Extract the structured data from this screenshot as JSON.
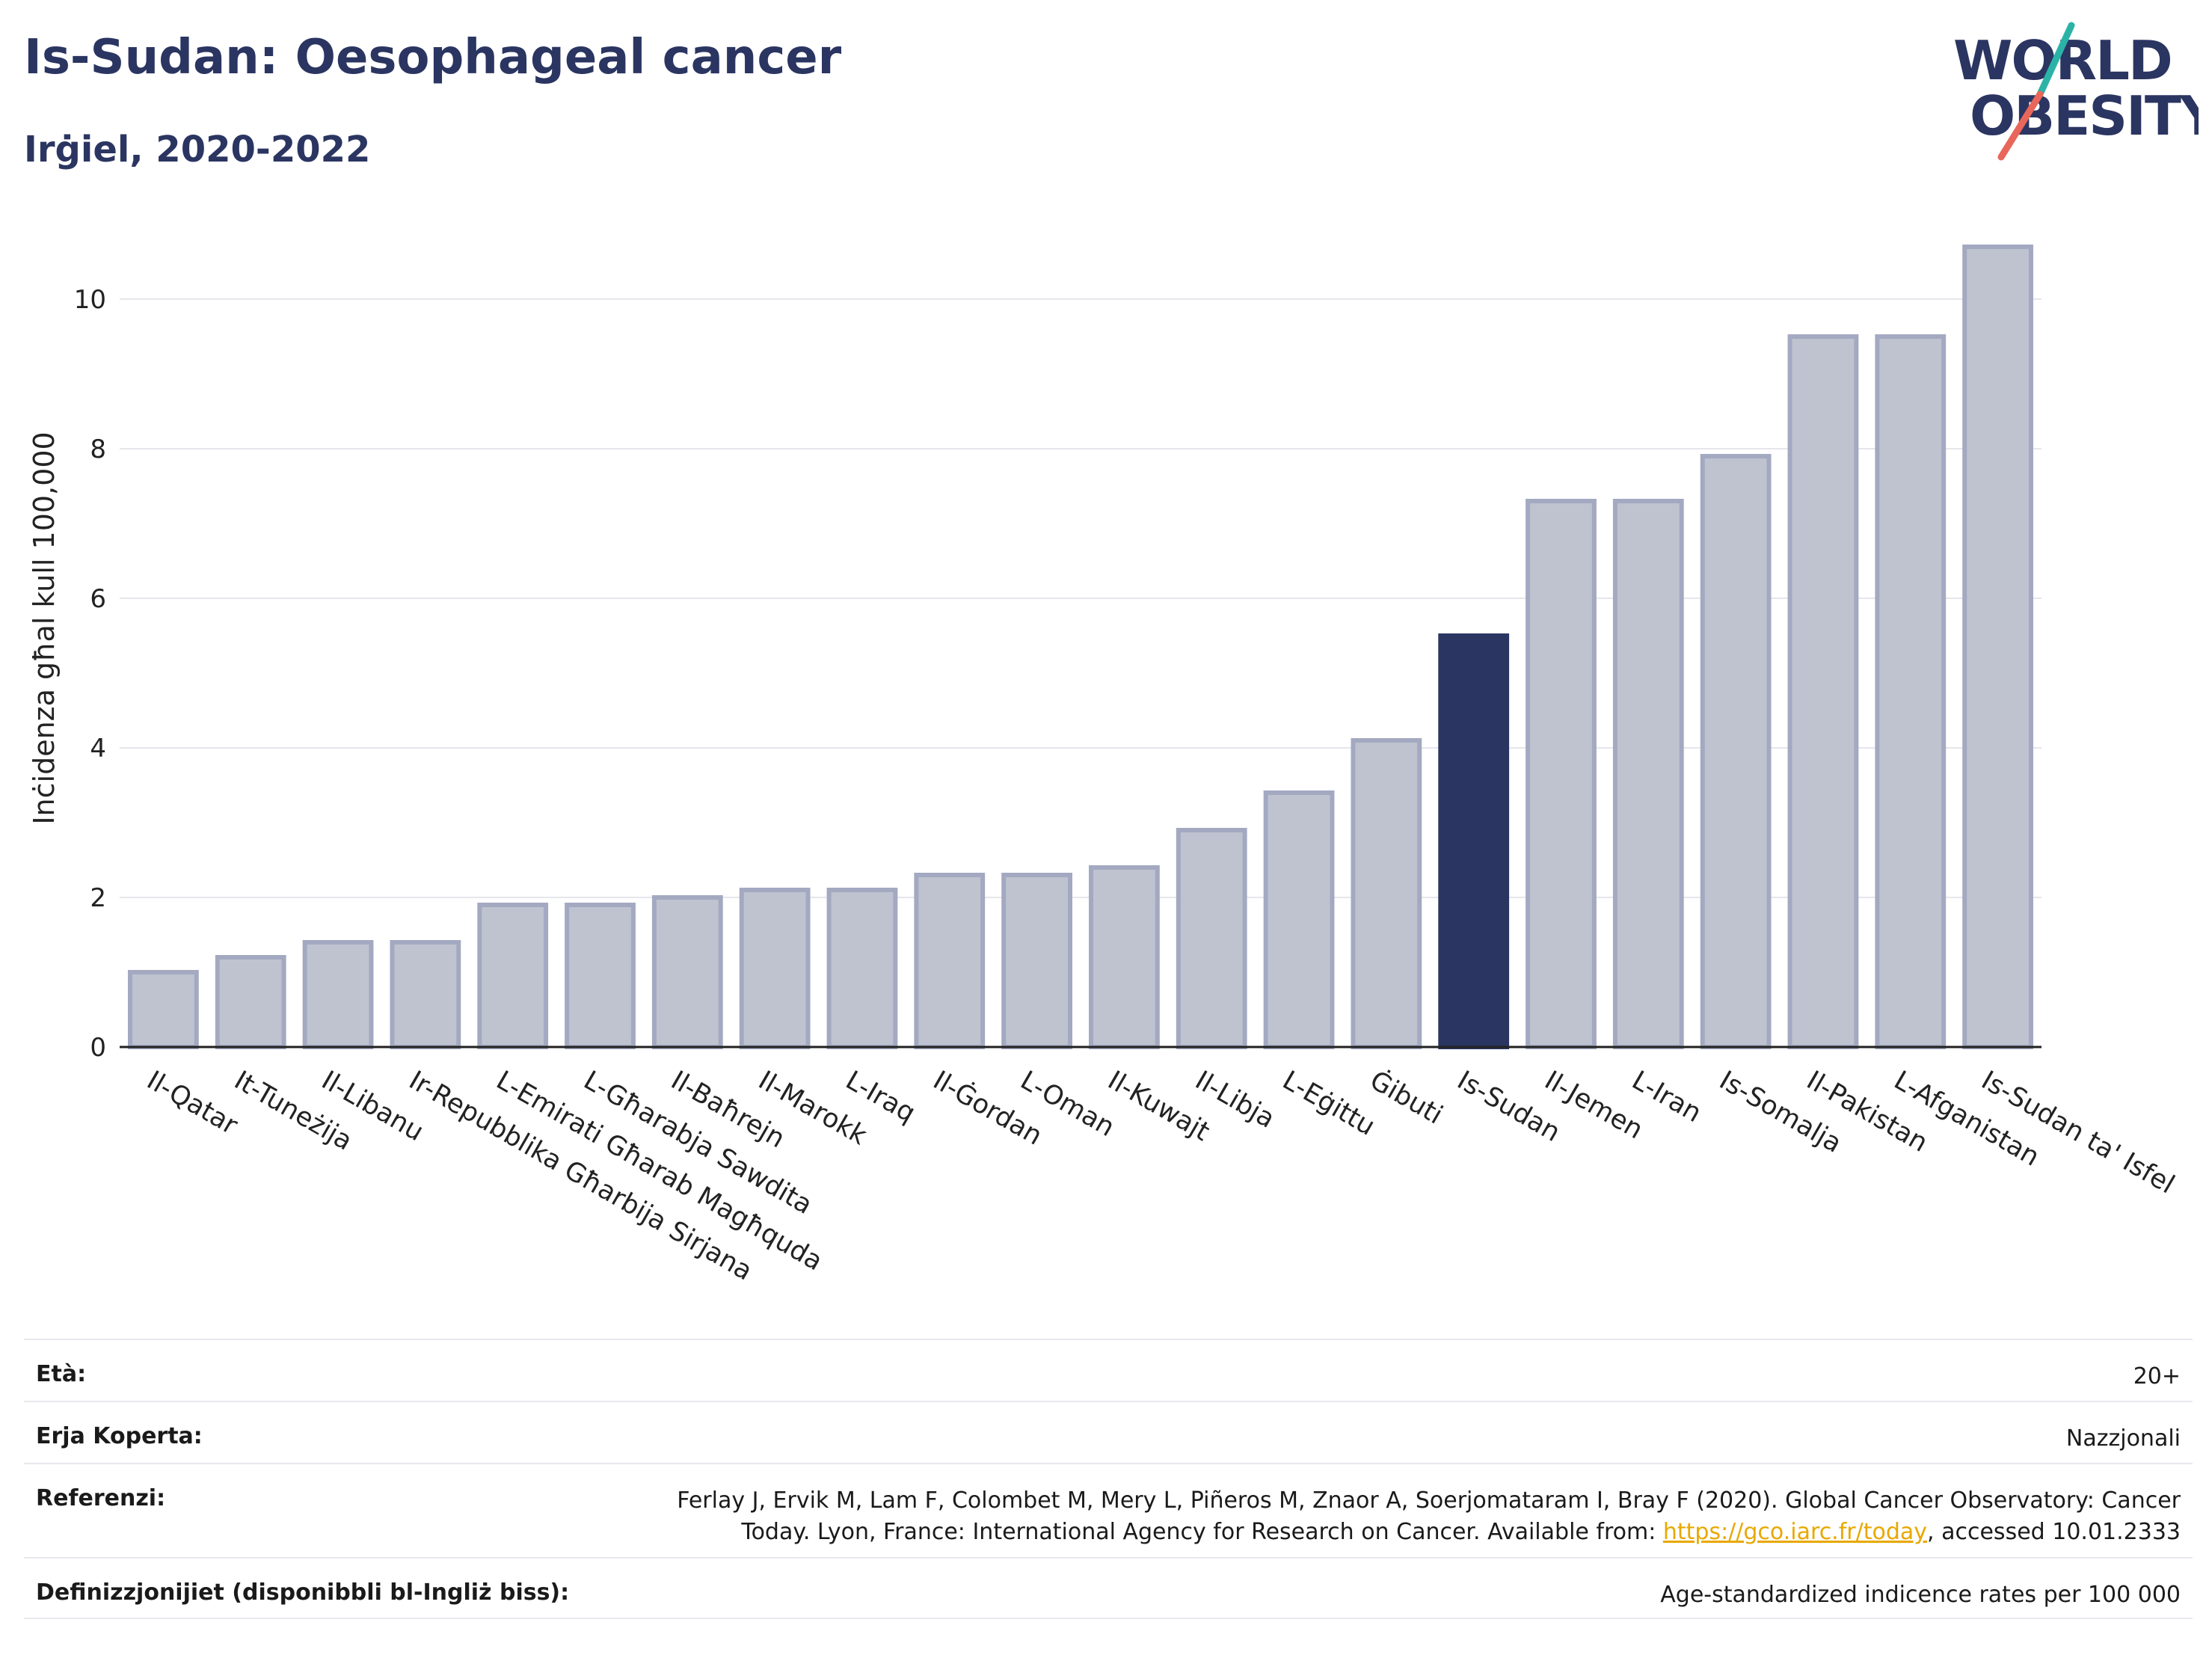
{
  "header": {
    "title": "Is-Sudan: Oesophageal cancer",
    "subtitle": "Irġiel, 2020-2022"
  },
  "logo": {
    "line1": "WORLD",
    "line2": "OBESITY",
    "accent_colors": [
      "#e8675a",
      "#2bb3a8"
    ],
    "text_color": "#2b3561"
  },
  "chart_data": {
    "type": "bar",
    "ylabel": "Inċidenza għal kull 100,000",
    "xlabel": "",
    "ylim": [
      0,
      11
    ],
    "yticks": [
      0,
      2,
      4,
      6,
      8,
      10
    ],
    "grid": true,
    "highlight_category": "Is-Sudan",
    "colors": {
      "bar_fill": "#bfc3d0",
      "bar_stroke": "#a3a9c0",
      "highlight": "#2b3561",
      "grid": "#e6e6ec"
    },
    "categories": [
      "Il-Qatar",
      "It-Tuneżija",
      "Il-Libanu",
      "Ir-Repubblika Għarbija Sirjana",
      "L-Emirati Għarab Magħquda",
      "L-Għarabja Sawdita",
      "Il-Baħrejn",
      "Il-Marokk",
      "L-Iraq",
      "Il-Ġordan",
      "L-Oman",
      "Il-Kuwajt",
      "Il-Libja",
      "L-Eġittu",
      "Ġibuti",
      "Is-Sudan",
      "Il-Jemen",
      "L-Iran",
      "Is-Somalja",
      "Il-Pakistan",
      "L-Afganistan",
      "Is-Sudan ta' Isfel"
    ],
    "values": [
      1.0,
      1.2,
      1.4,
      1.4,
      1.9,
      1.9,
      2.0,
      2.1,
      2.1,
      2.3,
      2.3,
      2.4,
      2.9,
      3.4,
      4.1,
      5.5,
      7.3,
      7.3,
      7.9,
      9.5,
      9.5,
      10.7
    ]
  },
  "info": {
    "rows": [
      {
        "key": "Età:",
        "value": "20+"
      },
      {
        "key": "Erja Koperta:",
        "value": "Nazzjonali"
      },
      {
        "key": "Referenzi:",
        "value_line1": "Ferlay J, Ervik M, Lam F, Colombet M, Mery L, Piñeros M, Znaor A, Soerjomataram I, Bray F (2020). Global Cancer Observatory: Cancer",
        "value_line2_pre": "Today. Lyon, France: International Agency for Research on Cancer. Available from: ",
        "value_link": "https://gco.iarc.fr/today",
        "value_line2_post": ", accessed 10.01.2333"
      },
      {
        "key": "Definizzjonijiet (disponibbli bl-Ingliż biss):",
        "value": "Age-standardized indicence rates per 100 000"
      }
    ]
  }
}
